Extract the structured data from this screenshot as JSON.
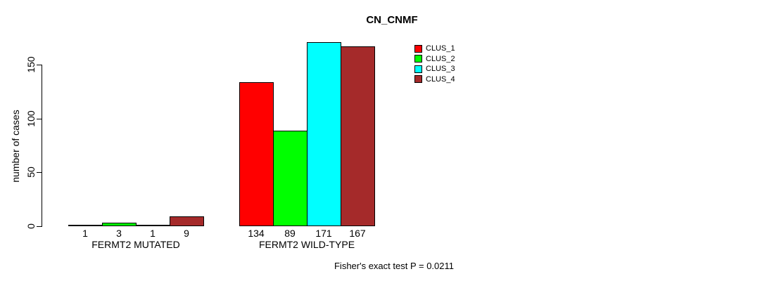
{
  "title": "CN_CNMF",
  "footer": "Fisher's exact test P = 0.0211",
  "chart_data": {
    "type": "bar",
    "title": "CN_CNMF",
    "xlabel": "",
    "ylabel": "number of cases",
    "yticks": [
      0,
      50,
      100,
      150
    ],
    "ylim": [
      0,
      175
    ],
    "grid": false,
    "legend_position": "top-right",
    "categories": [
      "FERMT2 MUTATED",
      "FERMT2 WILD-TYPE"
    ],
    "series": [
      {
        "name": "CLUS_1",
        "color": "#ff0000",
        "values": [
          1,
          134
        ]
      },
      {
        "name": "CLUS_2",
        "color": "#00ff00",
        "values": [
          3,
          89
        ]
      },
      {
        "name": "CLUS_3",
        "color": "#00ffff",
        "values": [
          1,
          171
        ]
      },
      {
        "name": "CLUS_4",
        "color": "#a52a2a",
        "values": [
          9,
          167
        ]
      }
    ],
    "bar_labels": [
      [
        1,
        3,
        1,
        9
      ],
      [
        134,
        89,
        171,
        167
      ]
    ],
    "annotation": "Fisher's exact test P = 0.0211"
  }
}
